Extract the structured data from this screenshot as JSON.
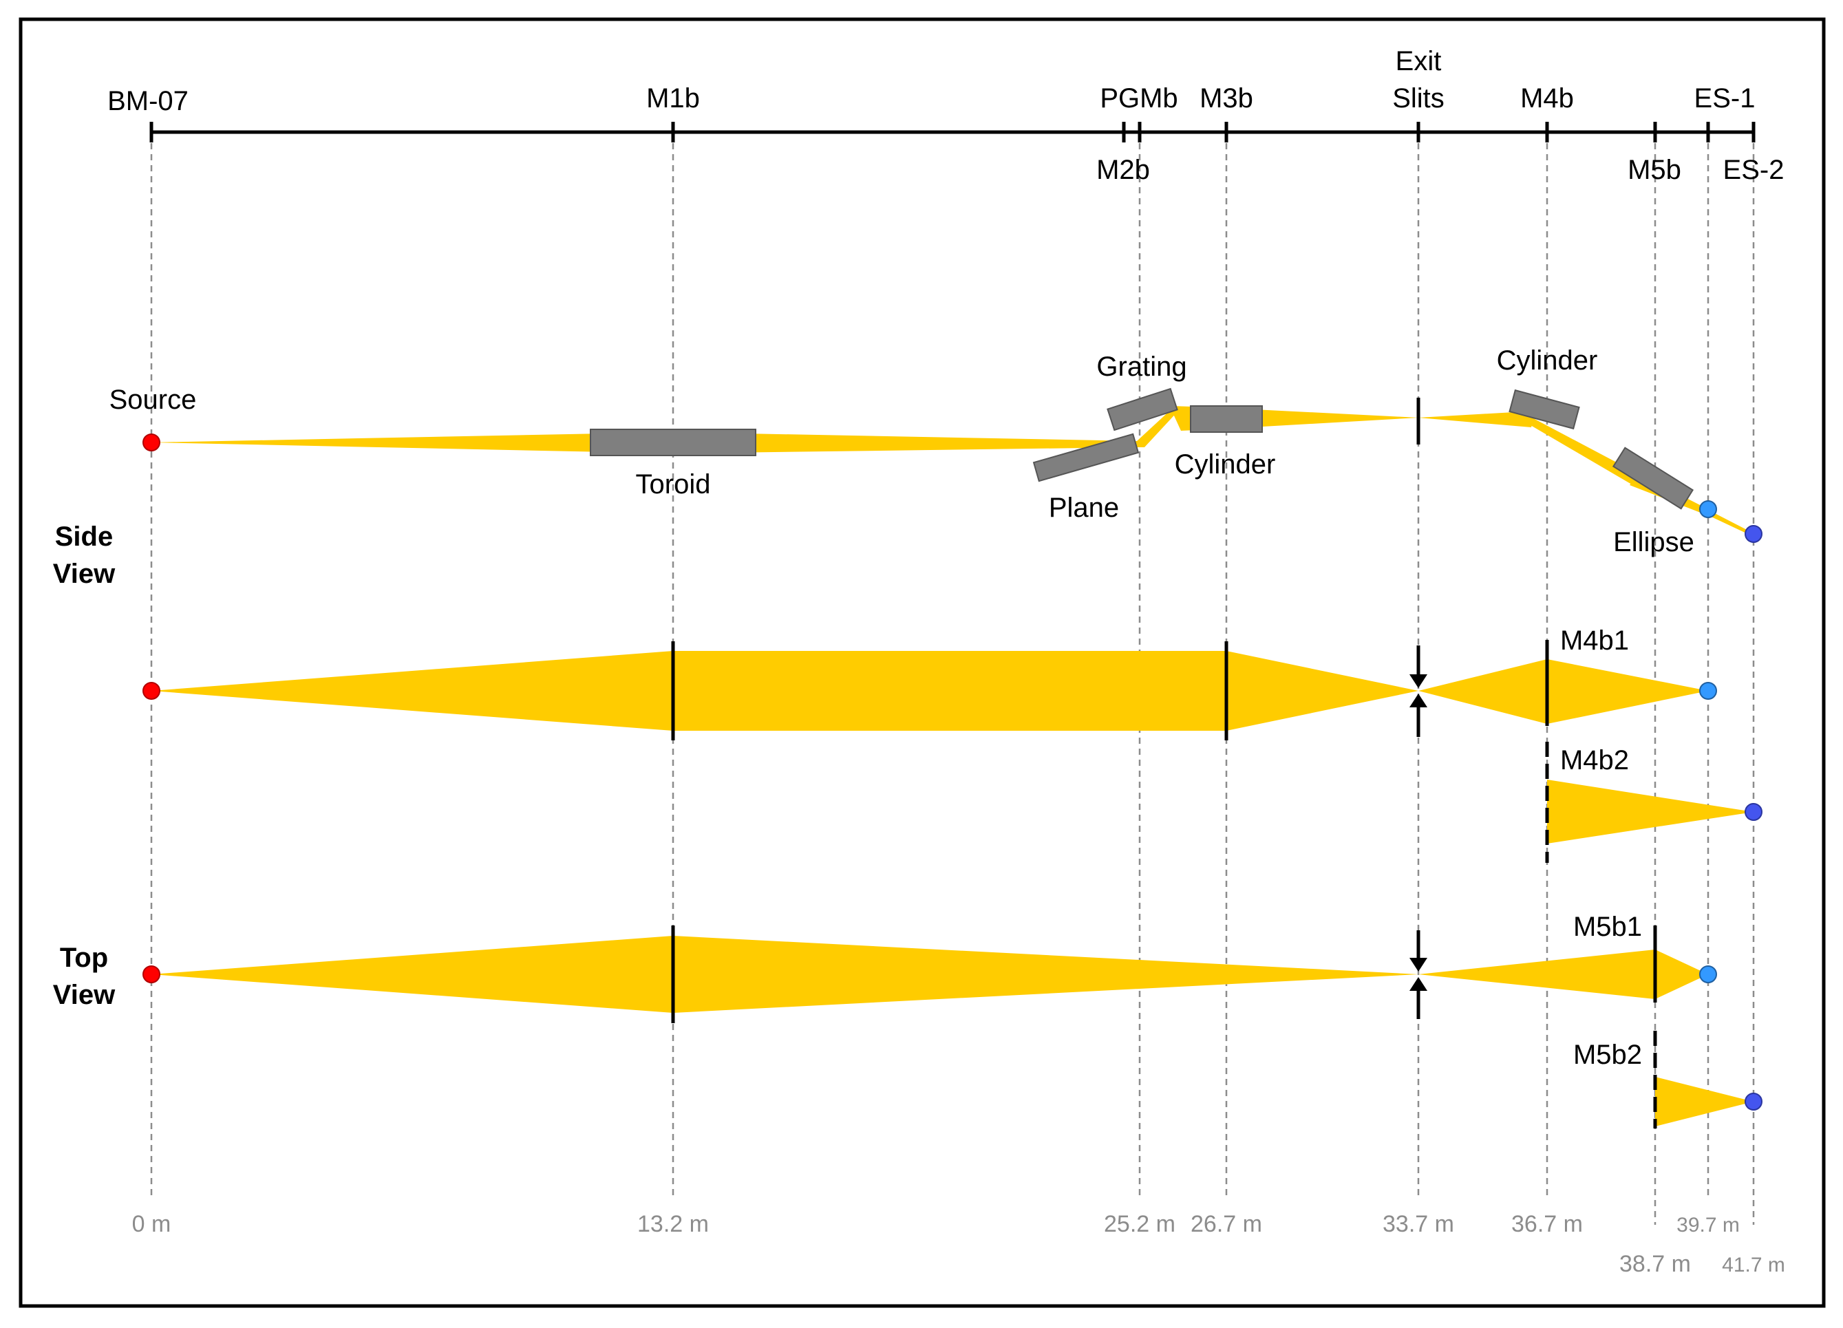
{
  "axis": {
    "stations": [
      {
        "id": "bm07",
        "label": "BM-07",
        "distance": "0 m"
      },
      {
        "id": "m1b",
        "label": "M1b",
        "distance": "13.2 m"
      },
      {
        "id": "pgmb",
        "label": "PGMb"
      },
      {
        "id": "m2b",
        "label": "M2b",
        "distance": "25.2 m"
      },
      {
        "id": "m3b",
        "label": "M3b",
        "distance": "26.7 m"
      },
      {
        "id": "exit",
        "label_line1": "Exit",
        "label_line2": "Slits",
        "distance": "33.7 m"
      },
      {
        "id": "m4b",
        "label": "M4b",
        "distance": "36.7 m"
      },
      {
        "id": "m5b",
        "label": "M5b",
        "distance": "38.7 m"
      },
      {
        "id": "es1",
        "label": "ES-1",
        "distance": "39.7 m"
      },
      {
        "id": "es2",
        "label": "ES-2",
        "distance": "41.7 m"
      }
    ]
  },
  "side_view": {
    "title_line1": "Side",
    "title_line2": "View",
    "source_label": "Source",
    "optics": {
      "toroid": "Toroid",
      "grating": "Grating",
      "plane": "Plane",
      "cylinder1": "Cylinder",
      "cylinder2": "Cylinder",
      "ellipse": "Ellipse"
    }
  },
  "middle_view": {
    "branch1": "M4b1",
    "branch2": "M4b2"
  },
  "top_view": {
    "title_line1": "Top",
    "title_line2": "View",
    "branch1": "M5b1",
    "branch2": "M5b2"
  },
  "colors": {
    "beam": "#FFCC00",
    "source": "#FF0000",
    "es1": "#3399FF",
    "es2": "#4455EE",
    "optic": "#7F7F7F"
  }
}
